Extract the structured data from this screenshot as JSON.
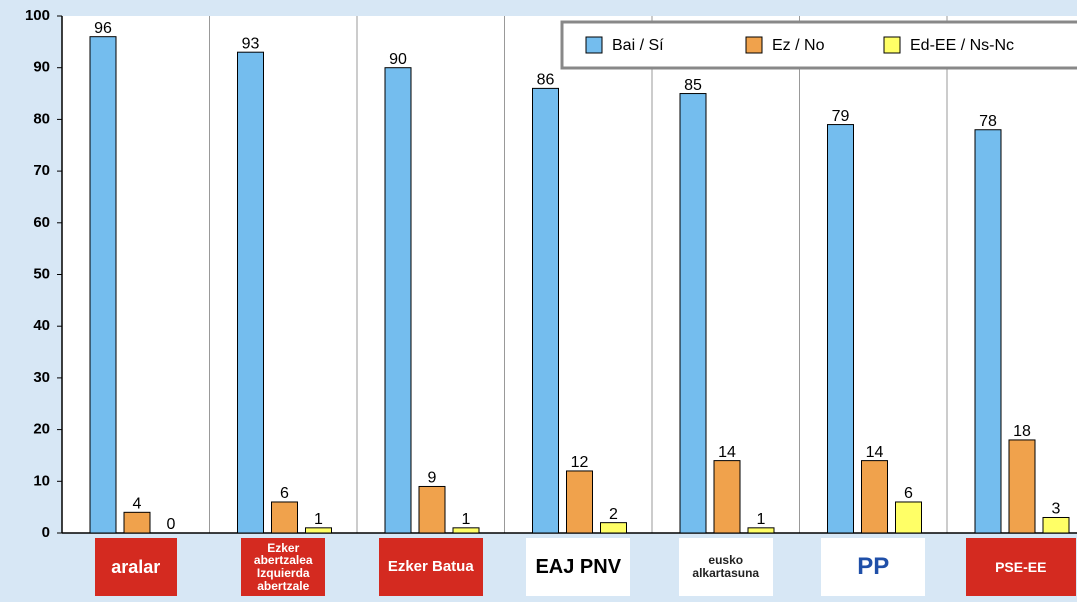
{
  "chart_data": {
    "type": "bar",
    "categories": [
      "aralar",
      "Ezker abertzalea Izquierda abertzale",
      "Ezker Batua",
      "EAJ PNV",
      "eusko alkartasuna",
      "PP",
      "PSE-EE"
    ],
    "series": [
      {
        "name": "Bai / Sí",
        "color": "#74bdee",
        "values": [
          96,
          93,
          90,
          86,
          85,
          79,
          78
        ]
      },
      {
        "name": "Ez / No",
        "color": "#f0a24c",
        "values": [
          4,
          6,
          9,
          12,
          14,
          14,
          18
        ]
      },
      {
        "name": "Ed-EE / Ns-Nc",
        "color": "#ffff66",
        "values": [
          0,
          1,
          1,
          2,
          1,
          6,
          3
        ]
      }
    ],
    "ylim": [
      0,
      100
    ],
    "yticks": [
      0,
      10,
      20,
      30,
      40,
      50,
      60,
      70,
      80,
      90,
      100
    ],
    "legend": "top-right"
  }
}
